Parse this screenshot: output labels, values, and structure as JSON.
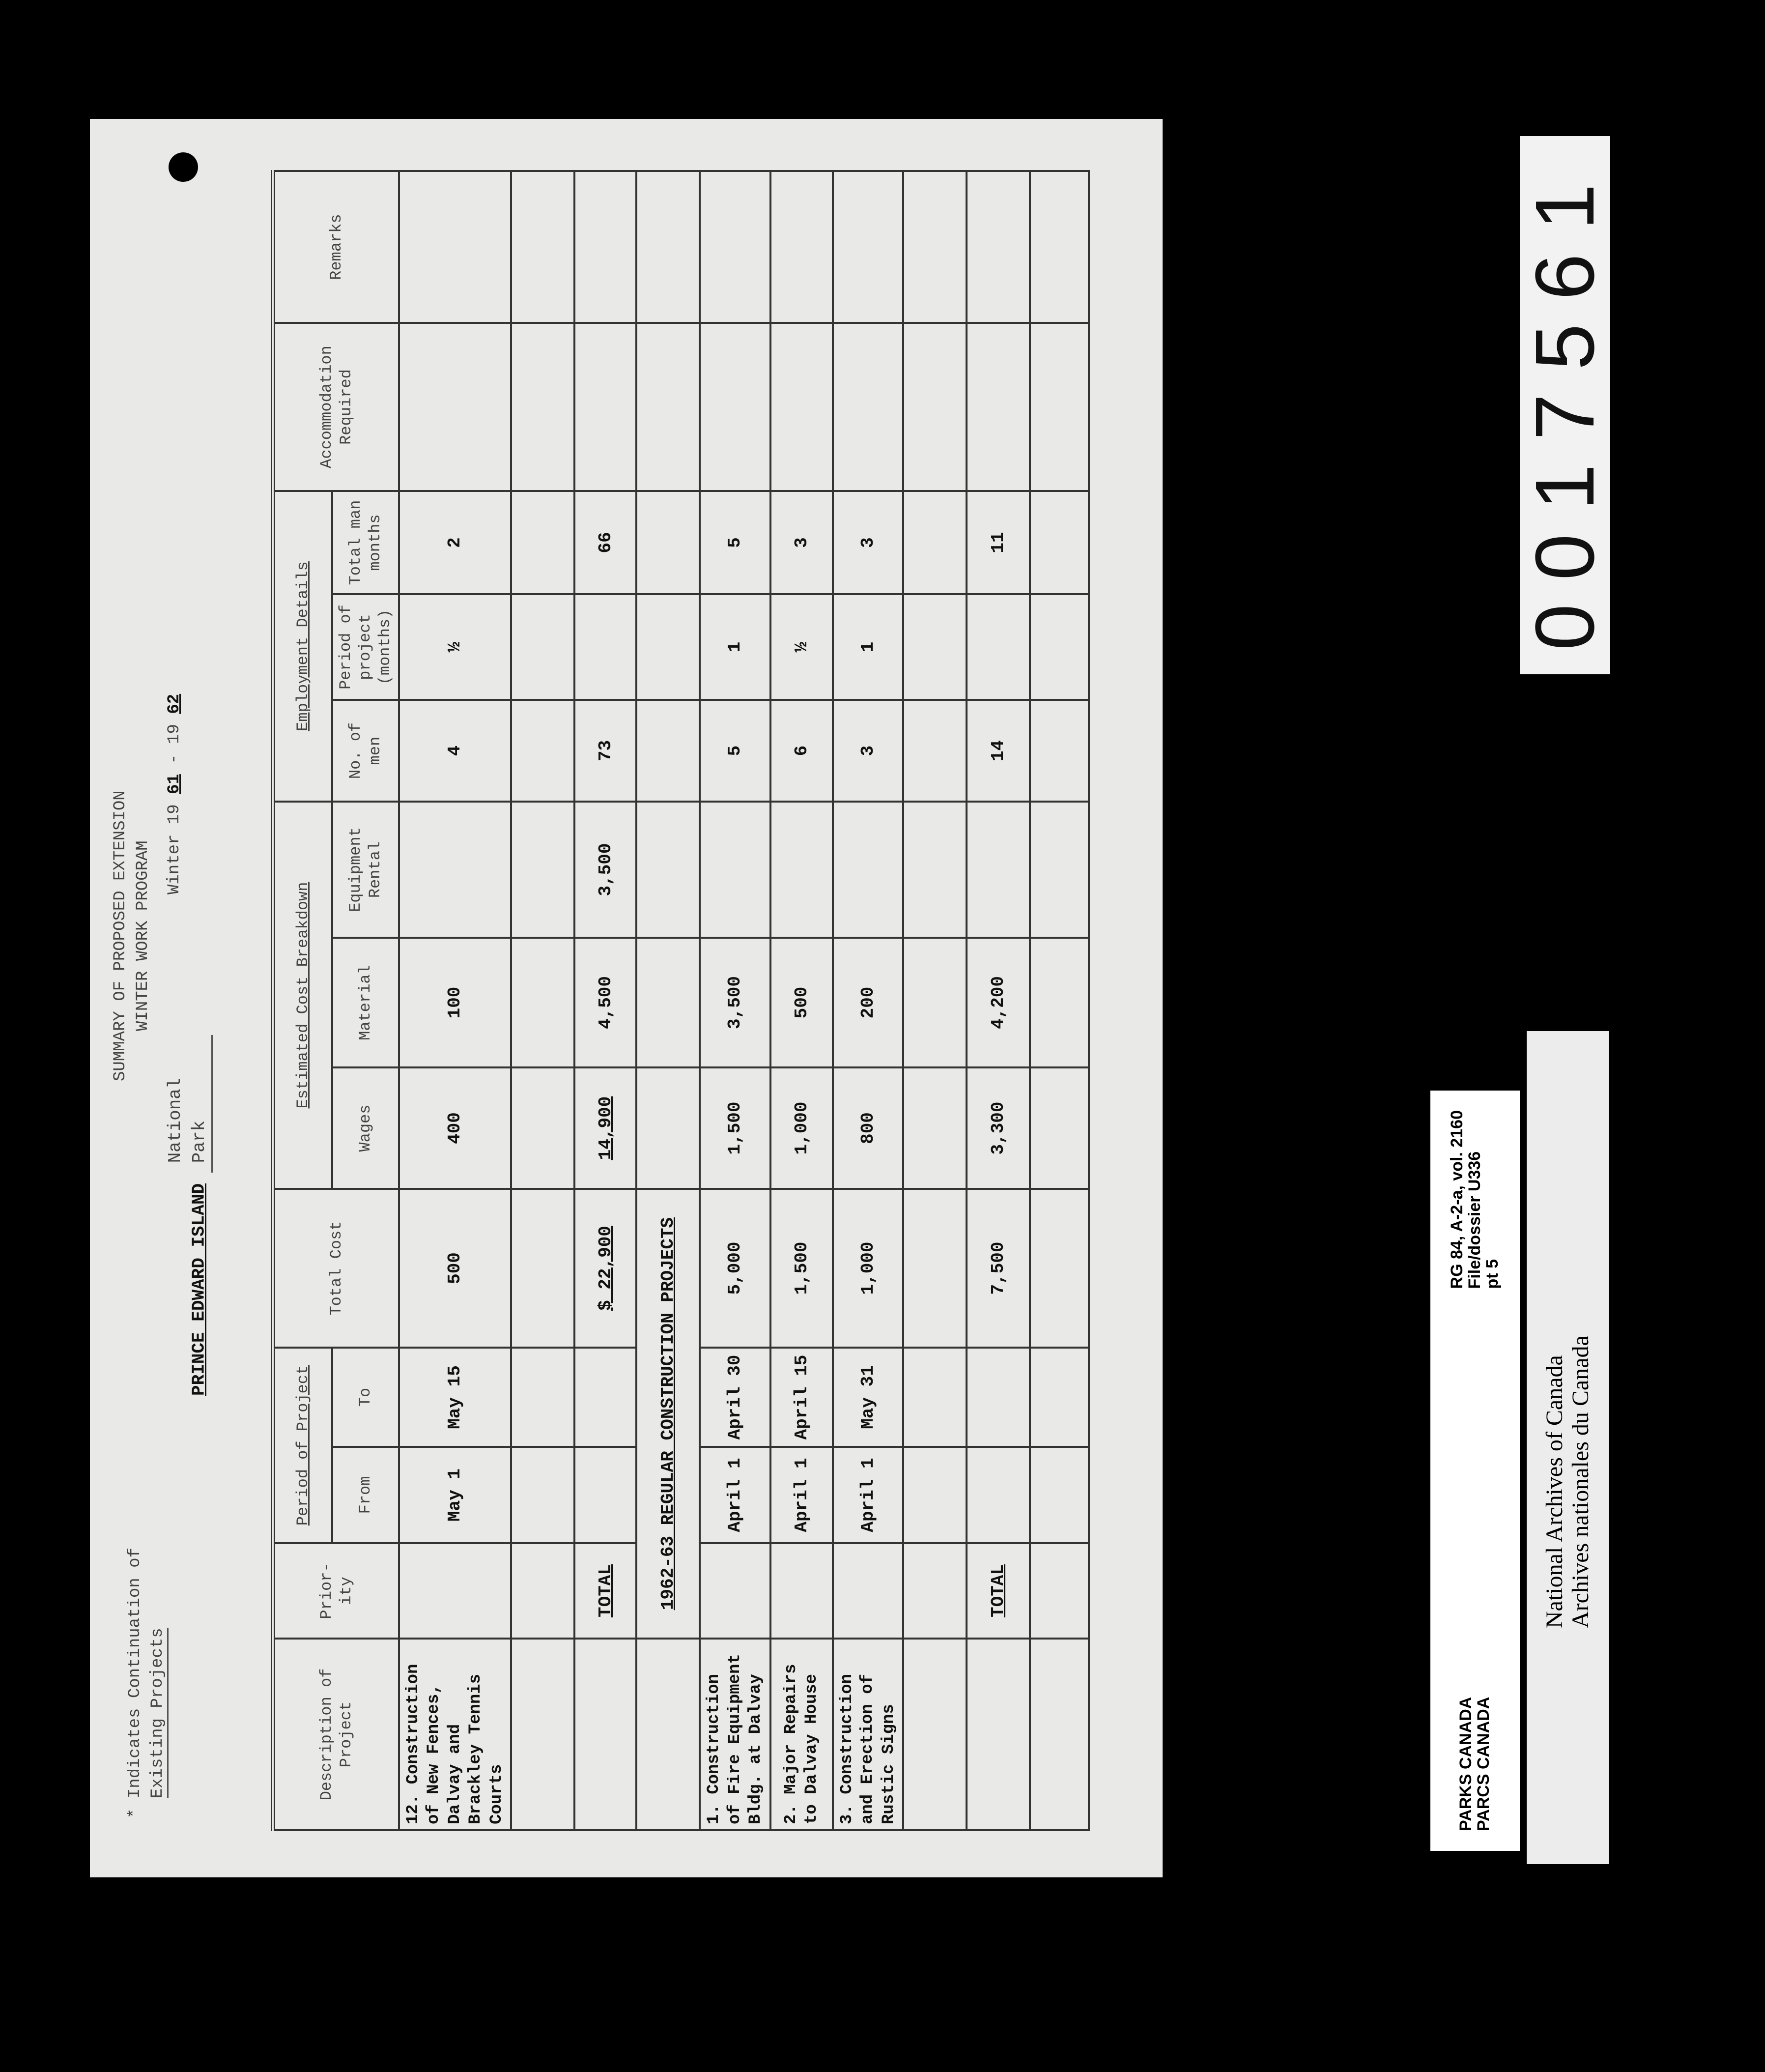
{
  "document": {
    "legend": {
      "mark": "*",
      "line1": "Indicates Continuation of",
      "line2": "Existing Projects"
    },
    "title": {
      "line1": "SUMMARY OF PROPOSED EXTENSION",
      "line2": "WINTER WORK PROGRAM"
    },
    "park": {
      "name": "PRINCE EDWARD ISLAND",
      "suffix": "National Park"
    },
    "winter": {
      "label": "Winter 19",
      "from": "61",
      "sep": "- 19",
      "to": "62"
    },
    "headers": {
      "description": "Description of Project",
      "priority": "Prior- ity",
      "period": "Period of Project",
      "from": "From",
      "to": "To",
      "total_cost": "Total Cost",
      "breakdown": "Estimated Cost Breakdown",
      "wages": "Wages",
      "material": "Material",
      "equipment": "Equipment Rental",
      "employment": "Employment Details",
      "no_men": "No. of men",
      "period_months": "Period of project (months)",
      "man_months": "Total man months",
      "accommodation": "Accommodation Required",
      "remarks": "Remarks"
    },
    "continuation_rows": [
      {
        "num": "12.",
        "description": "Construction of New Fences, Dalvay and Brackley Tennis Courts",
        "priority": "",
        "from": "May 1",
        "to": "May 15",
        "total": "500",
        "wages": "400",
        "material": "100",
        "equipment": "",
        "men": "4",
        "months": "½",
        "man_months": "2"
      }
    ],
    "total1": {
      "label": "TOTAL",
      "total": "$ 22,900",
      "wages": "14,900",
      "material": "4,500",
      "equipment": "3,500",
      "men": "73",
      "man_months": "66"
    },
    "section_heading": "1962-63 REGULAR CONSTRUCTION PROJECTS",
    "regular_rows": [
      {
        "num": "1.",
        "description": "Construction of Fire Equipment Bldg. at Dalvay",
        "from": "April 1",
        "to": "April 30",
        "total": "5,000",
        "wages": "1,500",
        "material": "3,500",
        "equipment": "",
        "men": "5",
        "months": "1",
        "man_months": "5"
      },
      {
        "num": "2.",
        "description": "Major Repairs to Dalvay House",
        "from": "April 1",
        "to": "April 15",
        "total": "1,500",
        "wages": "1,000",
        "material": "500",
        "equipment": "",
        "men": "6",
        "months": "½",
        "man_months": "3"
      },
      {
        "num": "3.",
        "description": "Construction and Erection of Rustic Signs",
        "from": "April 1",
        "to": "May 31",
        "total": "1,000",
        "wages": "800",
        "material": "200",
        "equipment": "",
        "men": "3",
        "months": "1",
        "man_months": "3"
      }
    ],
    "total2": {
      "label": "TOTAL",
      "total": "7,500",
      "wages": "3,300",
      "material": "4,200",
      "equipment": "",
      "men": "14",
      "man_months": "11"
    }
  },
  "frame_number": "0017561",
  "parks_label": {
    "line1": "PARKS CANADA",
    "line2": "PARCS CANADA",
    "ref1": "RG 84, A-2-a, vol. 2160",
    "ref2": "File/dossier U336",
    "ref3": "pt 5"
  },
  "archives_label": {
    "line1": "National Archives of Canada",
    "line2": "Archives nationales du Canada"
  }
}
